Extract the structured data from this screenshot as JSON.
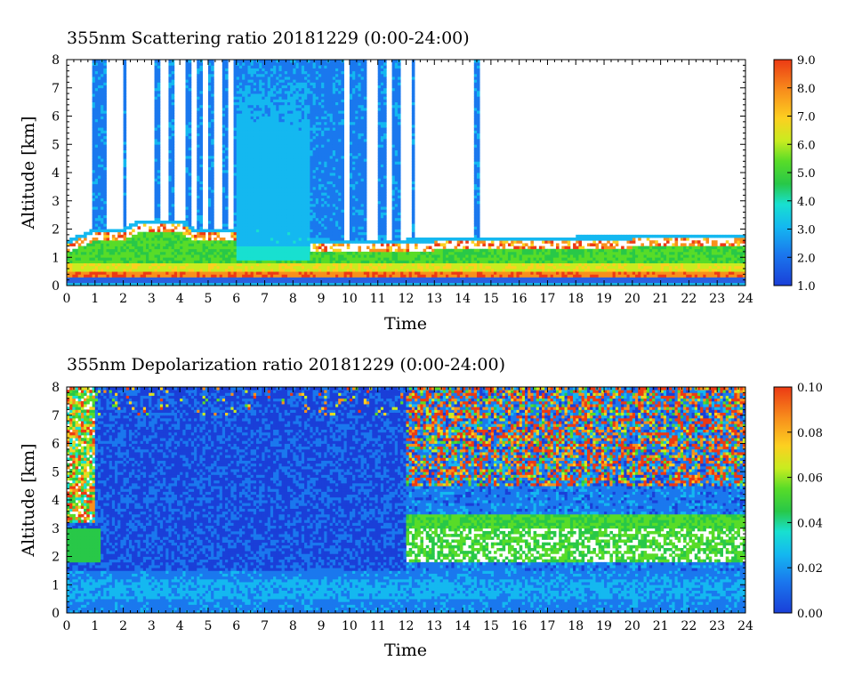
{
  "charts": [
    {
      "type": "heatmap",
      "title": "355nm Scattering ratio  20181229 (0:00-24:00)",
      "xlabel": "Time",
      "ylabel": "Altitude [km]",
      "xlim": [
        0,
        24
      ],
      "ylim": [
        0,
        8
      ],
      "x_ticks": [
        "0",
        "1",
        "2",
        "3",
        "4",
        "5",
        "6",
        "7",
        "8",
        "9",
        "10",
        "11",
        "12",
        "13",
        "14",
        "15",
        "16",
        "17",
        "18",
        "19",
        "20",
        "21",
        "22",
        "23",
        "24"
      ],
      "y_ticks": [
        "0",
        "1",
        "2",
        "3",
        "4",
        "5",
        "6",
        "7",
        "8"
      ],
      "colorbar": {
        "min": 1.0,
        "max": 9.0,
        "ticks": [
          "1.0",
          "2.0",
          "3.0",
          "4.0",
          "5.0",
          "6.0",
          "7.0",
          "8.0",
          "9.0"
        ]
      },
      "grid": false,
      "features": {
        "boundary_layer_top_km": [
          [
            0,
            1.5
          ],
          [
            1,
            1.95
          ],
          [
            2,
            1.95
          ],
          [
            2.5,
            2.2
          ],
          [
            3,
            2.25
          ],
          [
            4,
            2.25
          ],
          [
            4.5,
            1.95
          ],
          [
            6,
            1.9
          ],
          [
            6,
            1.5
          ],
          [
            8.6,
            1.4
          ],
          [
            8.6,
            1.6
          ],
          [
            10,
            1.5
          ],
          [
            12,
            1.55
          ],
          [
            14,
            1.65
          ],
          [
            16,
            1.6
          ],
          [
            18,
            1.65
          ],
          [
            20,
            1.7
          ],
          [
            22,
            1.75
          ],
          [
            24,
            1.75
          ]
        ],
        "cloud_columns_hours": [
          [
            0.95,
            1.35
          ],
          [
            2.0,
            2.1
          ],
          [
            3.1,
            3.3
          ],
          [
            3.6,
            3.8
          ],
          [
            4.2,
            4.4
          ],
          [
            4.6,
            4.8
          ],
          [
            5.0,
            5.2
          ],
          [
            5.5,
            5.7
          ],
          [
            5.9,
            6.0
          ],
          [
            6.0,
            8.6
          ],
          [
            8.6,
            9.8
          ],
          [
            10.0,
            10.6
          ],
          [
            11.0,
            11.3
          ],
          [
            11.5,
            11.8
          ],
          [
            12.2,
            12.3
          ],
          [
            14.45,
            14.55
          ]
        ]
      },
      "colors": [
        "#1a3fd8",
        "#1a78ee",
        "#14b8f0",
        "#18e0d0",
        "#28c848",
        "#58dc28",
        "#c8ec20",
        "#fcd020",
        "#f8901c",
        "#ec3a14"
      ]
    },
    {
      "type": "heatmap",
      "title": "355nm Depolarization ratio  20181229 (0:00-24:00)",
      "xlabel": "Time",
      "ylabel": "Altitude [km]",
      "xlim": [
        0,
        24
      ],
      "ylim": [
        0,
        8
      ],
      "x_ticks": [
        "0",
        "1",
        "2",
        "3",
        "4",
        "5",
        "6",
        "7",
        "8",
        "9",
        "10",
        "11",
        "12",
        "13",
        "14",
        "15",
        "16",
        "17",
        "18",
        "19",
        "20",
        "21",
        "22",
        "23",
        "24"
      ],
      "y_ticks": [
        "0",
        "1",
        "2",
        "3",
        "4",
        "5",
        "6",
        "7",
        "8"
      ],
      "colorbar": {
        "min": 0.0,
        "max": 0.1,
        "ticks": [
          "0.00",
          "0.02",
          "0.04",
          "0.06",
          "0.08",
          "0.10"
        ]
      },
      "grid": false,
      "features": {
        "noisy_high_depol_start_hour": 12,
        "white_gap_km": [
          1.8,
          3.0
        ]
      },
      "colors": [
        "#1a3fd8",
        "#1a78ee",
        "#14b8f0",
        "#18e0d0",
        "#28c848",
        "#58dc28",
        "#c8ec20",
        "#fcd020",
        "#f8901c",
        "#ec3a14"
      ]
    }
  ]
}
